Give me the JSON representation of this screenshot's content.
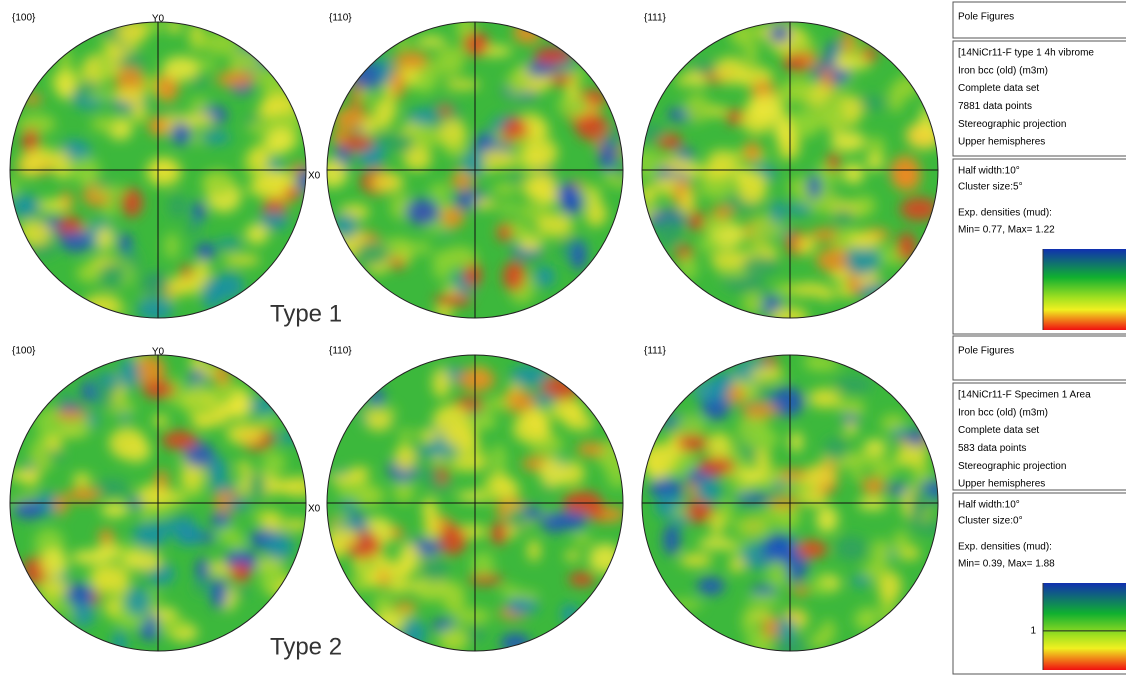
{
  "figures": [
    {
      "label": "Type 1",
      "pole_figures": [
        {
          "title": "{100}",
          "y_axis": "Y0",
          "x_axis": "X0"
        },
        {
          "title": "{110}"
        },
        {
          "title": "{111}"
        }
      ],
      "panel": {
        "header": "Pole Figures",
        "info": [
          "[14NiCr11-F type 1 4h vibrome",
          "Iron bcc (old) (m3m)",
          "Complete data set",
          "7881 data points",
          "Stereographic projection",
          "Upper hemispheres"
        ],
        "settings": [
          "Half width:10°",
          "Cluster size:5°"
        ],
        "densities": [
          "Exp. densities (mud):",
          "Min= 0.77, Max= 1.22"
        ]
      }
    },
    {
      "label": "Type 2",
      "pole_figures": [
        {
          "title": "{100}",
          "y_axis": "Y0",
          "x_axis": "X0"
        },
        {
          "title": "{110}"
        },
        {
          "title": "{111}"
        }
      ],
      "panel": {
        "header": "Pole Figures",
        "info": [
          "[14NiCr11-F Specimen 1 Area",
          "Iron bcc (old) (m3m)",
          "Complete data set",
          "583 data points",
          "Stereographic projection",
          "Upper hemispheres"
        ],
        "settings": [
          "Half width:10°",
          "Cluster size:0°"
        ],
        "densities": [
          "Exp. densities (mud):",
          "Min= 0.39, Max= 1.88"
        ],
        "scale_label": "1"
      }
    }
  ]
}
